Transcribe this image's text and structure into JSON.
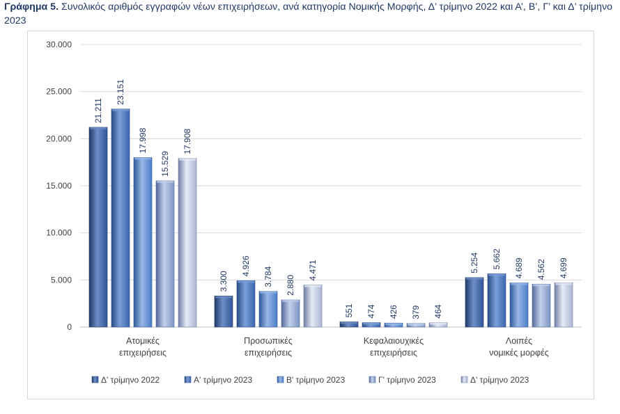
{
  "caption": {
    "prefix": "Γράφημα 5.",
    "text": "Συνολικός αριθμός εγγραφών νέων επιχειρήσεων, ανά κατηγορία Νομικής Μορφής, Δ’ τρίμηνο 2022 και Α’, Β’, Γ’ και Δ’ τρίμηνο 2023"
  },
  "chart_data": {
    "type": "bar",
    "title": "Συνολικός αριθμός εγγραφών νέων επιχειρήσεων, ανά κατηγορία Νομικής Μορφής, Δ’ τρίμηνο 2022 και Α’, Β’, Γ’ και Δ’ τρίμηνο 2023",
    "xlabel": "",
    "ylabel": "",
    "ylim": [
      0,
      30000
    ],
    "yticks": [
      0,
      5000,
      10000,
      15000,
      20000,
      25000,
      30000
    ],
    "ytick_labels": [
      "0",
      "5.000",
      "10.000",
      "15.000",
      "20.000",
      "25.000",
      "30.000"
    ],
    "grid": true,
    "legend_position": "bottom",
    "categories": [
      [
        "Ατομικές",
        "επιχειρήσεις"
      ],
      [
        "Προσωπικές",
        "επιχειρήσεις"
      ],
      [
        "Κεφαλαιουχικές",
        "επιχειρήσεις"
      ],
      [
        "Λοιπές",
        "νομικές μορφές"
      ]
    ],
    "series": [
      {
        "name": "Δ' τρίμηνο 2022",
        "values": [
          21211,
          3300,
          551,
          5254
        ],
        "labels": [
          "21.211",
          "3.300",
          "551",
          "5.254"
        ],
        "color": "#2f5496",
        "light": "#6f8fc8",
        "dark": "#1f3864"
      },
      {
        "name": "Α' τρίμηνο 2023",
        "values": [
          23151,
          4926,
          474,
          5662
        ],
        "labels": [
          "23.151",
          "4.926",
          "474",
          "5.662"
        ],
        "color": "#3a66b0",
        "light": "#7d9fd8",
        "dark": "#254a85"
      },
      {
        "name": "Β' τρίμηνο 2023",
        "values": [
          17998,
          3784,
          426,
          4689
        ],
        "labels": [
          "17.998",
          "3.784",
          "426",
          "4.689"
        ],
        "color": "#4a7cc8",
        "light": "#9ab8e6",
        "dark": "#2e5a9a"
      },
      {
        "name": "Γ' τρίμηνο 2023",
        "values": [
          15529,
          2880,
          379,
          4562
        ],
        "labels": [
          "15.529",
          "2.880",
          "379",
          "4.562"
        ],
        "color": "#7d96c4",
        "light": "#c2d0ea",
        "dark": "#52689a"
      },
      {
        "name": "Δ' τρίμηνο 2023",
        "values": [
          17908,
          4471,
          464,
          4699
        ],
        "labels": [
          "17.908",
          "4.471",
          "464",
          "4.699"
        ],
        "color": "#a9b6d2",
        "light": "#e6ebf5",
        "dark": "#6e7ea6"
      }
    ]
  }
}
